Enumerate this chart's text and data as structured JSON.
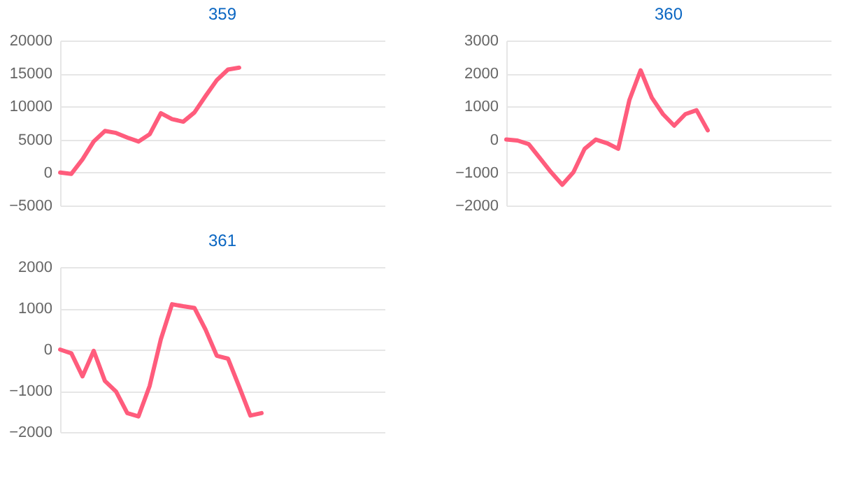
{
  "chart_data": [
    {
      "type": "line",
      "title": "359",
      "categories": [
        null,
        null,
        null,
        null,
        null,
        null,
        null,
        null,
        null,
        null,
        null,
        null,
        null,
        null,
        null,
        null,
        null,
        null,
        null,
        null,
        null,
        null,
        null,
        null,
        null,
        null,
        null,
        null,
        null,
        null
      ],
      "series": [
        {
          "color": "#ff5c7c",
          "values": [
            0,
            -200,
            2000,
            4700,
            6300,
            6000,
            5300,
            4700,
            5800,
            9000,
            8100,
            7700,
            9100,
            11600,
            14000,
            15600,
            15900,
            null,
            null,
            null,
            null,
            null,
            null,
            null,
            null,
            null,
            null,
            null,
            null,
            null
          ]
        }
      ],
      "ylim": [
        -5000,
        20000
      ],
      "yticks": [
        -5000,
        0,
        5000,
        10000,
        15000,
        20000
      ],
      "grid": "y",
      "tick_labels": "y"
    },
    {
      "type": "line",
      "title": "360",
      "categories": [
        null,
        null,
        null,
        null,
        null,
        null,
        null,
        null,
        null,
        null,
        null,
        null,
        null,
        null,
        null,
        null,
        null,
        null,
        null,
        null,
        null,
        null,
        null,
        null,
        null,
        null,
        null,
        null,
        null,
        null
      ],
      "series": [
        {
          "color": "#ff5c7c",
          "values": [
            0,
            -30,
            -140,
            -560,
            -990,
            -1370,
            -990,
            -280,
            0,
            -110,
            -280,
            1200,
            2100,
            1270,
            770,
            420,
            770,
            890,
            280,
            null,
            null,
            null,
            null,
            null,
            null,
            null,
            null,
            null,
            null,
            null
          ]
        }
      ],
      "ylim": [
        -2000,
        3000
      ],
      "yticks": [
        -2000,
        -1000,
        0,
        1000,
        2000,
        3000
      ],
      "grid": "y",
      "tick_labels": "y"
    },
    {
      "type": "line",
      "title": "361",
      "categories": [
        null,
        null,
        null,
        null,
        null,
        null,
        null,
        null,
        null,
        null,
        null,
        null,
        null,
        null,
        null,
        null,
        null,
        null,
        null,
        null,
        null,
        null,
        null,
        null,
        null,
        null,
        null,
        null,
        null,
        null
      ],
      "series": [
        {
          "color": "#ff5c7c",
          "values": [
            0,
            -90,
            -650,
            -30,
            -760,
            -1020,
            -1540,
            -1620,
            -880,
            250,
            1100,
            1050,
            1010,
            480,
            -150,
            -220,
            -900,
            -1600,
            -1540,
            null,
            null,
            null,
            null,
            null,
            null,
            null,
            null,
            null,
            null,
            null
          ]
        }
      ],
      "ylim": [
        -2000,
        2000
      ],
      "yticks": [
        -2000,
        -1000,
        0,
        1000,
        2000
      ],
      "grid": "y",
      "tick_labels": "y"
    }
  ]
}
